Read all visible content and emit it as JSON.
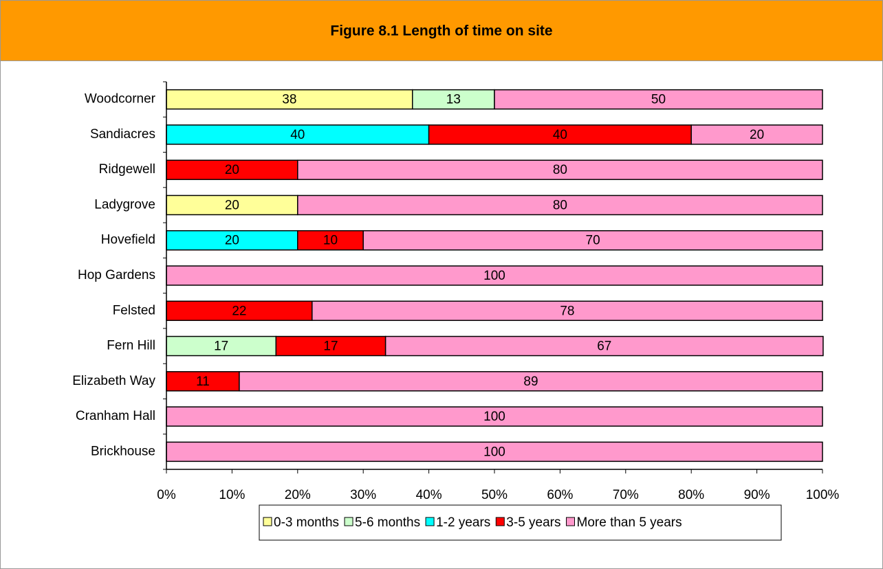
{
  "chart_data": {
    "type": "stacked_barh",
    "title": "Figure 8.1 Length of time on site",
    "categories": [
      "Woodcorner",
      "Sandiacres",
      "Ridgewell",
      "Ladygrove",
      "Hovefield",
      "Hop Gardens",
      "Felsted",
      "Fern Hill",
      "Elizabeth Way",
      "Cranham Hall",
      "Brickhouse"
    ],
    "series": [
      {
        "name": "0-3 months",
        "color": "#ffff99",
        "values": [
          37.5,
          null,
          null,
          20,
          null,
          null,
          null,
          null,
          null,
          null,
          null
        ],
        "value_labels": [
          "38",
          null,
          null,
          "20",
          null,
          null,
          null,
          null,
          null,
          null,
          null
        ]
      },
      {
        "name": "5-6 months",
        "color": "#ccffcc",
        "values": [
          12.5,
          null,
          null,
          null,
          null,
          null,
          null,
          16.7,
          null,
          null,
          null
        ],
        "value_labels": [
          "13",
          null,
          null,
          null,
          null,
          null,
          null,
          "17",
          null,
          null,
          null
        ]
      },
      {
        "name": "1-2 years",
        "color": "#00ffff",
        "values": [
          null,
          40,
          null,
          null,
          20,
          null,
          null,
          null,
          null,
          null,
          null
        ],
        "value_labels": [
          null,
          "40",
          null,
          null,
          "20",
          null,
          null,
          null,
          null,
          null,
          null
        ]
      },
      {
        "name": "3-5 years",
        "color": "#ff0000",
        "values": [
          null,
          40,
          20,
          null,
          10,
          null,
          22.2,
          16.7,
          11.1,
          null,
          null
        ],
        "value_labels": [
          null,
          "40",
          "20",
          null,
          "10",
          null,
          "22",
          "17",
          "11",
          null,
          null
        ]
      },
      {
        "name": "More than 5 years",
        "color": "#ff99cc",
        "values": [
          50,
          20,
          80,
          80,
          70,
          100,
          77.8,
          66.7,
          88.9,
          100,
          100
        ],
        "value_labels": [
          "50",
          "20",
          "80",
          "80",
          "70",
          "100",
          "78",
          "67",
          "89",
          "100",
          "100"
        ]
      }
    ],
    "xlim": [
      0,
      100
    ],
    "xticks": [
      {
        "value": 0,
        "label": "0%"
      },
      {
        "value": 10,
        "label": "10%"
      },
      {
        "value": 20,
        "label": "20%"
      },
      {
        "value": 30,
        "label": "30%"
      },
      {
        "value": 40,
        "label": "40%"
      },
      {
        "value": 50,
        "label": "50%"
      },
      {
        "value": 60,
        "label": "60%"
      },
      {
        "value": 70,
        "label": "70%"
      },
      {
        "value": 80,
        "label": "80%"
      },
      {
        "value": 90,
        "label": "90%"
      },
      {
        "value": 100,
        "label": "100%"
      }
    ],
    "legend": "bottom"
  }
}
